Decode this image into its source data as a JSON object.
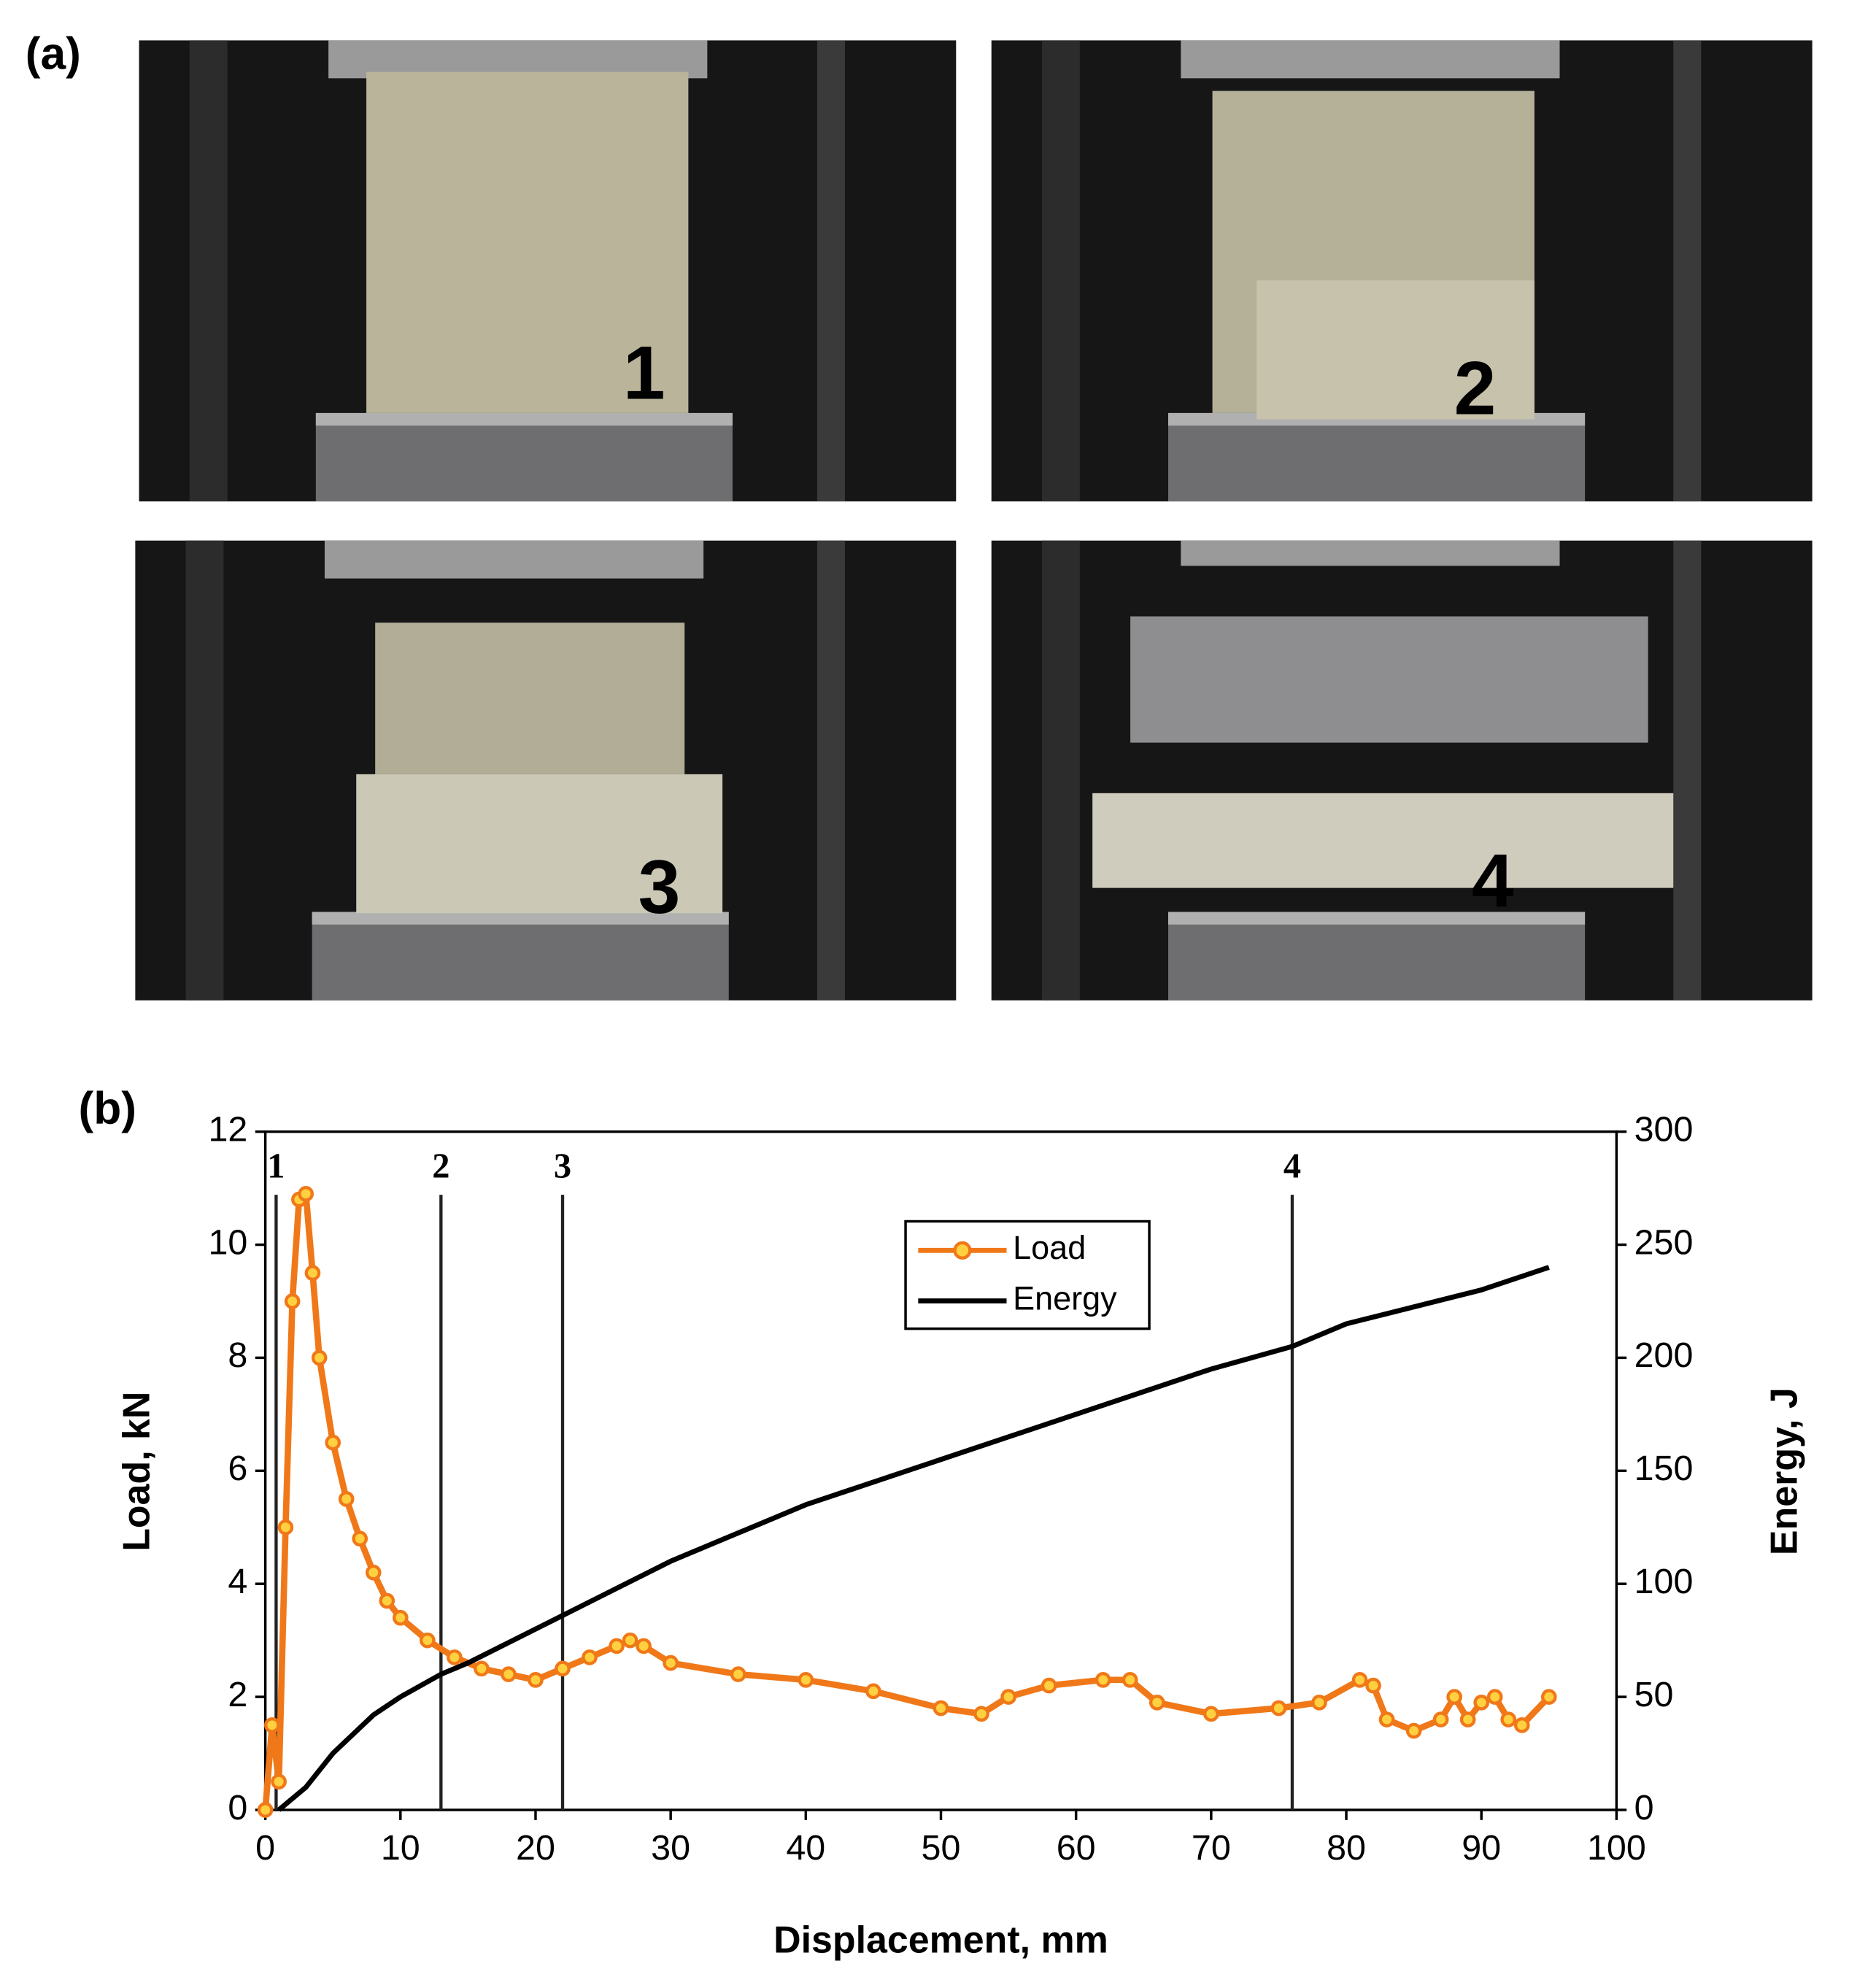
{
  "panel_a": {
    "label": "(a)",
    "photos": [
      {
        "label": "1"
      },
      {
        "label": "2"
      },
      {
        "label": "3"
      },
      {
        "label": "4"
      }
    ]
  },
  "chart_data": {
    "type": "line",
    "panel_label": "(b)",
    "x_label": "Displacement, mm",
    "y_label": "Load, kN",
    "y2_label": "Energy, J",
    "xlim": [
      0,
      100
    ],
    "xticks": [
      0,
      10,
      20,
      30,
      40,
      50,
      60,
      70,
      80,
      90,
      100
    ],
    "ylim": [
      0,
      12
    ],
    "yticks": [
      0,
      2,
      4,
      6,
      8,
      10,
      12
    ],
    "y2lim": [
      0,
      300
    ],
    "y2ticks": [
      0,
      50,
      100,
      150,
      200,
      250,
      300
    ],
    "grid": false,
    "legend": "upper center",
    "series": [
      {
        "name": "Load",
        "color": "#f07818",
        "marker_color": "#ffd040",
        "x": [
          0,
          0.5,
          1,
          1.5,
          2,
          2.5,
          3,
          3.5,
          4,
          5,
          6,
          7,
          8,
          9,
          10,
          12,
          14,
          16,
          18,
          20,
          22,
          24,
          26,
          27,
          28,
          30,
          35,
          40,
          45,
          50,
          53,
          55,
          58,
          62,
          64,
          66,
          70,
          75,
          78,
          81,
          82,
          83,
          85,
          87,
          88,
          89,
          90,
          91,
          92,
          93,
          95
        ],
        "values": [
          0,
          1.5,
          0.5,
          5,
          9,
          10.8,
          10.9,
          9.5,
          8,
          6.5,
          5.5,
          4.8,
          4.2,
          3.7,
          3.4,
          3.0,
          2.7,
          2.5,
          2.4,
          2.3,
          2.5,
          2.7,
          2.9,
          3.0,
          2.9,
          2.6,
          2.4,
          2.3,
          2.1,
          1.8,
          1.7,
          2.0,
          2.2,
          2.3,
          2.3,
          1.9,
          1.7,
          1.8,
          1.9,
          2.3,
          2.2,
          1.6,
          1.4,
          1.6,
          2.0,
          1.6,
          1.9,
          2.0,
          1.6,
          1.5,
          2.0
        ]
      },
      {
        "name": "Energy",
        "color": "#000000",
        "axis": "y2",
        "x": [
          1,
          3,
          5,
          8,
          10,
          13,
          15,
          20,
          25,
          30,
          40,
          50,
          60,
          70,
          76,
          80,
          90,
          95
        ],
        "values": [
          0,
          10,
          25,
          42,
          50,
          60,
          65,
          80,
          95,
          110,
          135,
          155,
          175,
          195,
          205,
          215,
          230,
          240
        ]
      }
    ],
    "stage_lines": [
      {
        "x": 0.8,
        "label": "1"
      },
      {
        "x": 13,
        "label": "2"
      },
      {
        "x": 22,
        "label": "3"
      },
      {
        "x": 76,
        "label": "4"
      }
    ]
  }
}
